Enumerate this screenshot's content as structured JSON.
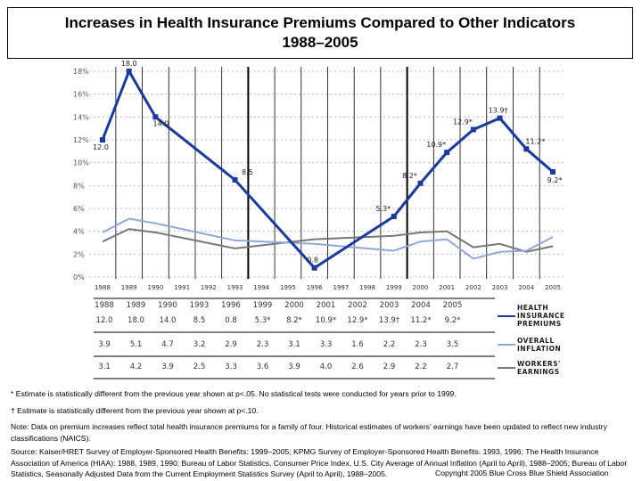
{
  "title_line1": "Increases in Health Insurance Premiums Compared to Other Indicators",
  "title_line2": "1988–2005",
  "chart_data": {
    "type": "line",
    "title": "Increases in Health Insurance Premiums Compared to Other Indicators 1988–2005",
    "x_ticks": [
      "1988",
      "1989",
      "1990",
      "1991",
      "1992",
      "1993",
      "1994",
      "1995",
      "1996",
      "1997",
      "1998",
      "1999",
      "2000",
      "2001",
      "2002",
      "2003",
      "2004",
      "2005"
    ],
    "y_ticks": [
      "0%",
      "2%",
      "4%",
      "6%",
      "8%",
      "10%",
      "12%",
      "14%",
      "16%",
      "18%"
    ],
    "ylim": [
      0,
      18
    ],
    "grid": true,
    "x": [
      1988,
      1989,
      1990,
      1993,
      1996,
      1999,
      2000,
      2001,
      2002,
      2003,
      2004,
      2005
    ],
    "series": [
      {
        "name": "HEALTH INSURANCE PREMIUMS",
        "color": "#1a3a9c",
        "values": [
          12.0,
          18.0,
          14.0,
          8.5,
          0.8,
          5.3,
          8.2,
          10.9,
          12.9,
          13.9,
          11.2,
          9.2
        ],
        "labels": [
          "12.0",
          "18.0",
          "14.0",
          "8.5",
          "0.8",
          "5.3*",
          "8.2*",
          "10.9*",
          "12.9*",
          "13.9†",
          "11.2*",
          "9.2*"
        ]
      },
      {
        "name": "OVERALL INFLATION",
        "color": "#8fa8d8",
        "values": [
          3.9,
          5.1,
          4.7,
          3.2,
          2.9,
          2.3,
          3.1,
          3.3,
          1.6,
          2.2,
          2.3,
          3.5
        ],
        "labels": [
          "3.9",
          "5.1",
          "4.7",
          "3.2",
          "2.9",
          "2.3",
          "3.1",
          "3.3",
          "1.6",
          "2.2",
          "2.3",
          "3.5"
        ]
      },
      {
        "name": "WORKERS' EARNINGS",
        "color": "#777777",
        "values": [
          3.1,
          4.2,
          3.9,
          2.5,
          3.3,
          3.6,
          3.9,
          4.0,
          2.6,
          2.9,
          2.2,
          2.7
        ],
        "labels": [
          "3.1",
          "4.2",
          "3.9",
          "2.5",
          "3.3",
          "3.6",
          "3.9",
          "4.0",
          "2.6",
          "2.9",
          "2.2",
          "2.7"
        ]
      }
    ],
    "table_years": [
      "1988",
      "1989",
      "1990",
      "1993",
      "1996",
      "1999",
      "2000",
      "2001",
      "2002",
      "2003",
      "2004",
      "2005"
    ],
    "legend": [
      "HEALTH INSURANCE PREMIUMS",
      "OVERALL INFLATION",
      "WORKERS' EARNINGS"
    ],
    "legend_position": "right of table"
  },
  "footnotes": {
    "star": "* Estimate is statistically different from the previous year shown at p<.05. No statistical tests were conducted for years prior to 1999.",
    "dagger": "† Estimate is statistically different from the previous year shown at p<.10.",
    "note": "Note: Data on premium increases reflect total health insurance premiums for a family of four. Historical estimates of workers' earnings have been updated to reflect new industry classifications (NAICS).",
    "source": "Source: Kaiser/HRET Survey of Employer-Sponsored Health Benefits: 1999–2005; KPMG Survey of Employer-Sponsored Health Benefits: 1993, 1996; The Health Insurance Association of America (HIAA): 1988, 1989, 1990; Bureau of Labor Statistics, Consumer Price Index, U.S. City Average of Annual Inflation (April to April), 1988–2005; Bureau of Labor Statistics, Seasonally Adjusted Data from the Current Employment Statistics Survey (April to April), 1988–2005."
  },
  "copyright": "Copyright 2005 Blue Cross Blue Shield Association"
}
